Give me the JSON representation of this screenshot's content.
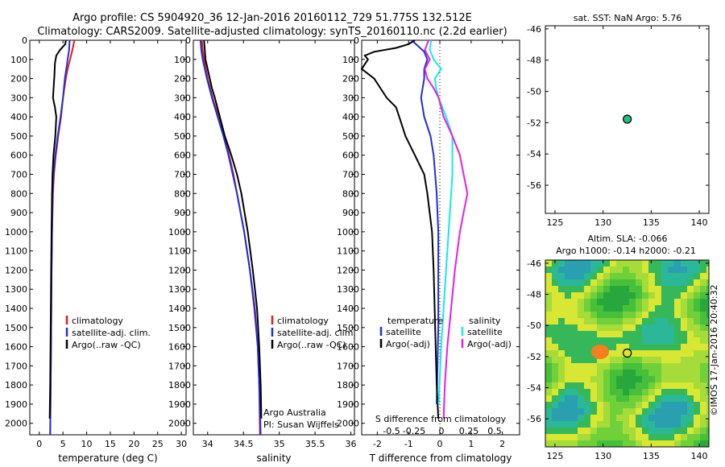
{
  "header": {
    "line1": "Argo profile: CS 5904920_36 12-Jan-2016 20160112_729 51.775S 132.512E",
    "line2": "Climatology: CARS2009. Satellite-adjusted climatology: synTS_20160110.nc (2.2d earlier)"
  },
  "depth_ticks": [
    0,
    100,
    200,
    300,
    400,
    500,
    600,
    700,
    800,
    900,
    1000,
    1100,
    1200,
    1300,
    1400,
    1500,
    1600,
    1700,
    1800,
    1900,
    2000
  ],
  "colors": {
    "climatology": "#e41b17",
    "satellite": "#1f2fd6",
    "argo": "#000000",
    "cyan": "#16e8e8",
    "magenta": "#e61ee6"
  },
  "chart_data": [
    {
      "type": "line",
      "name": "temperature",
      "xlabel": "temperature (deg C)",
      "xlim": [
        -2,
        31
      ],
      "x_ticks": [
        0,
        5,
        10,
        15,
        20,
        25,
        30
      ],
      "ylim": [
        2060,
        0
      ],
      "legend": [
        "climatology",
        "satellite-adj. clim.",
        "Argo(..raw -QC)"
      ],
      "series": [
        {
          "name": "climatology",
          "color": "#e41b17",
          "y": [
            0,
            50,
            100,
            150,
            200,
            300,
            400,
            500,
            600,
            700,
            800,
            1000,
            1200,
            1500,
            1800,
            2060
          ],
          "x": [
            7.4,
            7.0,
            6.5,
            6.0,
            5.6,
            5.0,
            4.6,
            4.0,
            3.5,
            3.1,
            2.9,
            2.7,
            2.6,
            2.5,
            2.4,
            2.3
          ]
        },
        {
          "name": "satellite-adj. clim.",
          "color": "#1f2fd6",
          "y": [
            0,
            50,
            100,
            150,
            200,
            300,
            400,
            500,
            600,
            700,
            800,
            1000,
            1200,
            1500,
            1800,
            2060
          ],
          "x": [
            6.4,
            6.3,
            6.0,
            5.7,
            5.4,
            5.0,
            4.5,
            3.9,
            3.4,
            3.0,
            2.8,
            2.7,
            2.6,
            2.5,
            2.4,
            2.3
          ]
        },
        {
          "name": "Argo(..raw -QC)",
          "color": "#000000",
          "y": [
            0,
            20,
            50,
            80,
            120,
            180,
            220,
            260,
            300,
            350,
            400,
            500,
            600,
            700,
            800,
            1000,
            1200,
            1500,
            1800,
            1975
          ],
          "x": [
            5.6,
            5.5,
            4.4,
            3.6,
            3.3,
            3.2,
            3.1,
            3.0,
            2.9,
            3.3,
            3.6,
            3.4,
            3.0,
            2.8,
            2.7,
            2.6,
            2.5,
            2.4,
            2.3,
            2.2
          ]
        }
      ]
    },
    {
      "type": "line",
      "name": "salinity",
      "xlabel": "salinity",
      "xlim": [
        33.8,
        36.05
      ],
      "x_ticks": [
        34,
        34.5,
        35,
        35.5,
        36
      ],
      "ylim": [
        2060,
        0
      ],
      "legend": [
        "climatology",
        "satellite-adj. clim.",
        "Argo(..raw -QC)"
      ],
      "annotations": [
        "Argo Australia",
        "PI: Susan Wijffels"
      ],
      "series": [
        {
          "name": "climatology",
          "color": "#e41b17",
          "y": [
            0,
            50,
            100,
            200,
            300,
            400,
            500,
            600,
            700,
            800,
            1000,
            1200,
            1400,
            1600,
            1800,
            2060
          ],
          "x": [
            33.92,
            33.93,
            33.95,
            34.0,
            34.07,
            34.15,
            34.23,
            34.3,
            34.36,
            34.41,
            34.51,
            34.59,
            34.65,
            34.7,
            34.72,
            34.73
          ]
        },
        {
          "name": "satellite-adj. clim.",
          "color": "#1f2fd6",
          "y": [
            0,
            50,
            100,
            200,
            300,
            400,
            500,
            600,
            700,
            800,
            1000,
            1200,
            1400,
            1600,
            1800,
            2060
          ],
          "x": [
            33.9,
            33.91,
            33.93,
            33.99,
            34.06,
            34.14,
            34.22,
            34.29,
            34.35,
            34.41,
            34.51,
            34.59,
            34.66,
            34.7,
            34.72,
            34.74
          ]
        },
        {
          "name": "Argo(..raw -QC)",
          "color": "#000000",
          "y": [
            0,
            50,
            100,
            150,
            200,
            250,
            300,
            400,
            500,
            600,
            700,
            800,
            1000,
            1200,
            1400,
            1600,
            1800,
            1975
          ],
          "x": [
            33.95,
            33.96,
            33.97,
            34.0,
            34.03,
            34.06,
            34.1,
            34.17,
            34.24,
            34.33,
            34.41,
            34.47,
            34.56,
            34.63,
            34.69,
            34.72,
            34.74,
            34.75
          ]
        }
      ]
    },
    {
      "type": "line",
      "name": "difference",
      "xlabel": "T difference from climatology",
      "xlabel_top": "S difference from climatology",
      "xlim": [
        -2.5,
        2.55
      ],
      "x_ticks": [
        -2,
        -1,
        0,
        1,
        2
      ],
      "x_ticks_top": [
        "-0.5",
        "-0.25",
        "0",
        "0.25",
        "0.5"
      ],
      "ylim": [
        2060,
        0
      ],
      "legend_temperature": {
        "title": "temperature",
        "items": [
          "satellite",
          "Argo(-adj)"
        ]
      },
      "legend_salinity": {
        "title": "salinity",
        "items": [
          "satellite",
          "Argo(-adj)"
        ]
      },
      "series": [
        {
          "name": "temperature satellite",
          "color": "#1f2fd6",
          "y": [
            0,
            30,
            60,
            100,
            150,
            200,
            300,
            400,
            500,
            600,
            800,
            1000,
            1500,
            1900
          ],
          "x": [
            -0.9,
            -0.7,
            -0.5,
            -0.4,
            -0.5,
            -0.5,
            -0.6,
            -0.5,
            -0.3,
            -0.2,
            -0.1,
            -0.05,
            -0.05,
            -0.1
          ]
        },
        {
          "name": "temperature Argo(-adj)",
          "color": "#000000",
          "y": [
            0,
            20,
            40,
            60,
            80,
            100,
            150,
            200,
            250,
            300,
            350,
            400,
            500,
            600,
            700,
            800,
            1000,
            1200,
            1500,
            1800,
            1975
          ],
          "x": [
            -0.8,
            -1.0,
            -1.4,
            -2.1,
            -2.4,
            -2.3,
            -2.5,
            -2.1,
            -1.9,
            -1.7,
            -1.4,
            -1.3,
            -1.1,
            -0.8,
            -0.5,
            -0.4,
            -0.25,
            -0.2,
            -0.15,
            -0.1,
            -0.05
          ]
        },
        {
          "name": "salinity satellite",
          "color": "#16e8e8",
          "y": [
            0,
            50,
            100,
            150,
            200,
            250,
            300,
            400,
            500,
            700,
            1000,
            1300,
            1600,
            1900
          ],
          "x": [
            -0.07,
            -0.08,
            -0.05,
            0.01,
            -0.04,
            -0.03,
            -0.01,
            0.05,
            0.1,
            0.1,
            0.07,
            0.04,
            0.01,
            -0.01
          ]
        },
        {
          "name": "salinity Argo(-adj)",
          "color": "#e61ee6",
          "y": [
            0,
            50,
            100,
            150,
            200,
            250,
            300,
            400,
            500,
            600,
            700,
            800,
            900,
            1000,
            1200,
            1400,
            1600,
            1800,
            1975
          ],
          "x": [
            -0.09,
            -0.12,
            -0.08,
            -0.12,
            -0.1,
            -0.05,
            -0.01,
            0.03,
            0.1,
            0.16,
            0.19,
            0.22,
            0.19,
            0.16,
            0.12,
            0.09,
            0.06,
            0.04,
            0.03
          ]
        }
      ]
    },
    {
      "type": "scatter",
      "name": "sst-map",
      "title": "sat. SST: NaN Argo: 5.76",
      "xlim": [
        124,
        141
      ],
      "ylim": [
        -57.8,
        -45.8
      ],
      "x_ticks": [
        125,
        130,
        135,
        140
      ],
      "y_ticks": [
        -46,
        -48,
        -50,
        -52,
        -54,
        -56
      ],
      "points": [
        {
          "x": 132.512,
          "y": -51.775,
          "color": "#20c080"
        }
      ]
    },
    {
      "type": "heatmap",
      "name": "sla-map",
      "title": "Altim. SLA: -0.066",
      "subtitle": "Argo h1000: -0.14 h2000: -0.21",
      "xlim": [
        124,
        141
      ],
      "ylim": [
        -57.8,
        -45.8
      ],
      "x_ticks": [
        125,
        130,
        135,
        140
      ],
      "y_ticks": [
        -46,
        -48,
        -50,
        -52,
        -54,
        -56
      ],
      "points": [
        {
          "x": 132.512,
          "y": -51.775
        }
      ],
      "side_label": "©IMOS 17-Jan-2016 20:40:32"
    }
  ]
}
